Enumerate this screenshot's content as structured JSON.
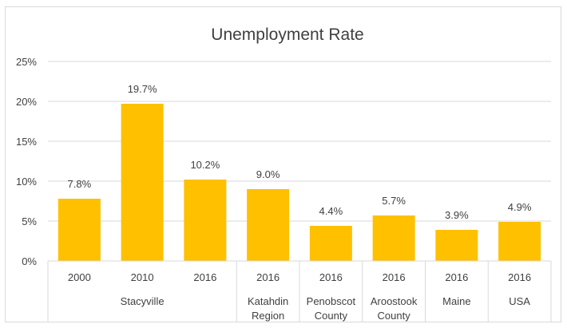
{
  "chart_data": {
    "type": "bar",
    "title": "Unemployment Rate",
    "xlabel": "",
    "ylabel": "",
    "ylim": [
      0,
      25
    ],
    "y_ticks": [
      "0%",
      "5%",
      "10%",
      "15%",
      "20%",
      "25%"
    ],
    "y_tick_values": [
      0,
      5,
      10,
      15,
      20,
      25
    ],
    "grid": true,
    "bar_color": "#FFC000",
    "categories": [
      "2000",
      "2010",
      "2016",
      "2016",
      "2016",
      "2016",
      "2016",
      "2016"
    ],
    "groups": [
      {
        "label": [
          "Stacyville"
        ],
        "count": 3
      },
      {
        "label": [
          "Katahdin",
          "Region"
        ],
        "count": 1
      },
      {
        "label": [
          "Penobscot",
          "County"
        ],
        "count": 1
      },
      {
        "label": [
          "Aroostook",
          "County"
        ],
        "count": 1
      },
      {
        "label": [
          "Maine"
        ],
        "count": 1
      },
      {
        "label": [
          "USA"
        ],
        "count": 1
      }
    ],
    "values": [
      7.8,
      19.7,
      10.2,
      9.0,
      4.4,
      5.7,
      3.9,
      4.9
    ],
    "data_labels": [
      "7.8%",
      "19.7%",
      "10.2%",
      "9.0%",
      "4.4%",
      "5.7%",
      "3.9%",
      "4.9%"
    ]
  }
}
